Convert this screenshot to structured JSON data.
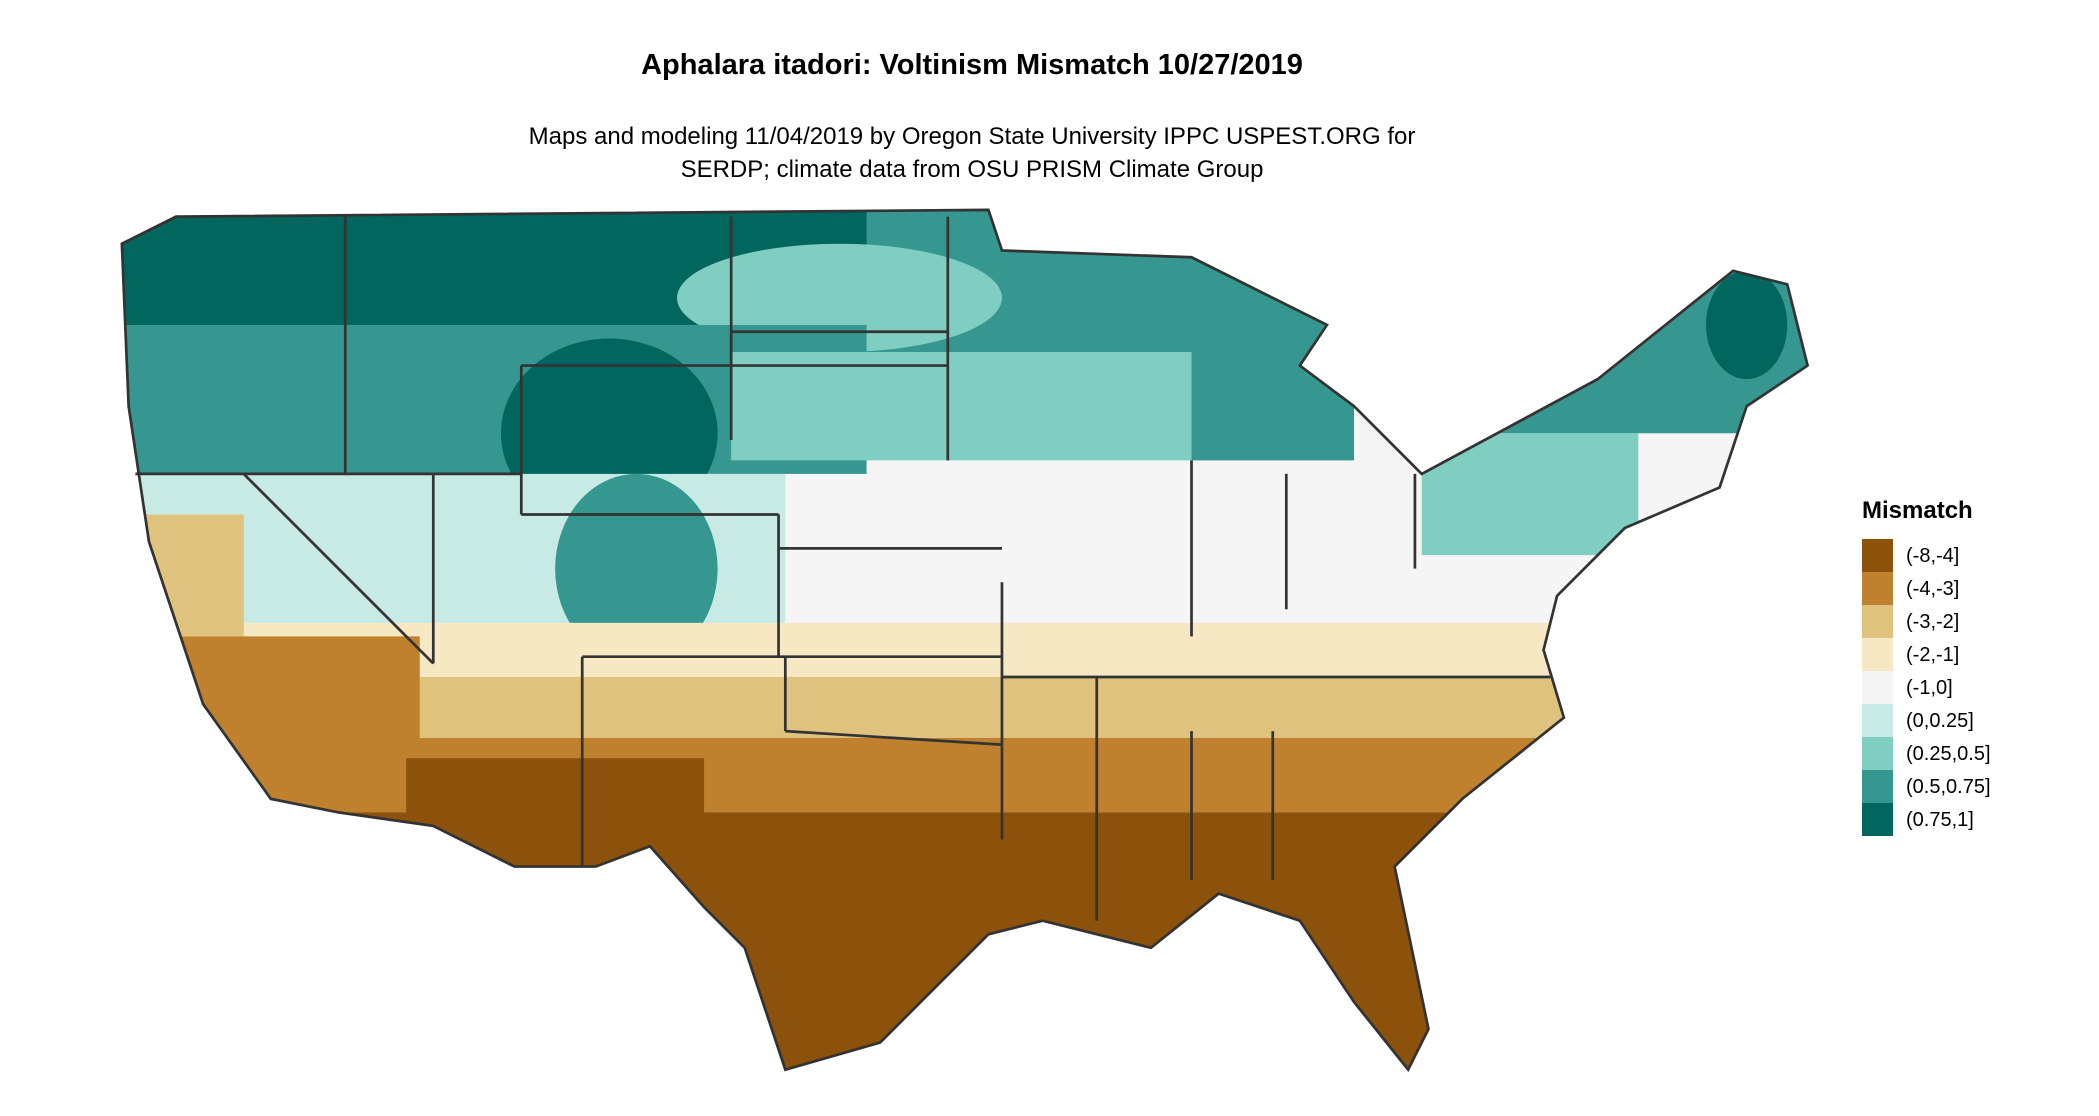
{
  "title": "Aphalara itadori: Voltinism Mismatch 10/27/2019",
  "subtitle_lines": [
    "Maps and modeling 11/04/2019 by Oregon State University IPPC USPEST.ORG for",
    "SERDP; climate data from OSU PRISM Climate Group"
  ],
  "legend": {
    "title": "Mismatch",
    "items": [
      {
        "label": "(-8,-4]",
        "color": "#8c510a"
      },
      {
        "label": "(-4,-3]",
        "color": "#bf812d"
      },
      {
        "label": "(-3,-2]",
        "color": "#dfc27d"
      },
      {
        "label": "(-2,-1]",
        "color": "#f6e8c3"
      },
      {
        "label": "(-1,0]",
        "color": "#f5f5f5"
      },
      {
        "label": "(0,0.25]",
        "color": "#c7eae5"
      },
      {
        "label": "(0.25,0.5]",
        "color": "#80cdc1"
      },
      {
        "label": "(0.5,0.75]",
        "color": "#35978f"
      },
      {
        "label": "(0.75,1]",
        "color": "#01665e"
      }
    ]
  }
}
